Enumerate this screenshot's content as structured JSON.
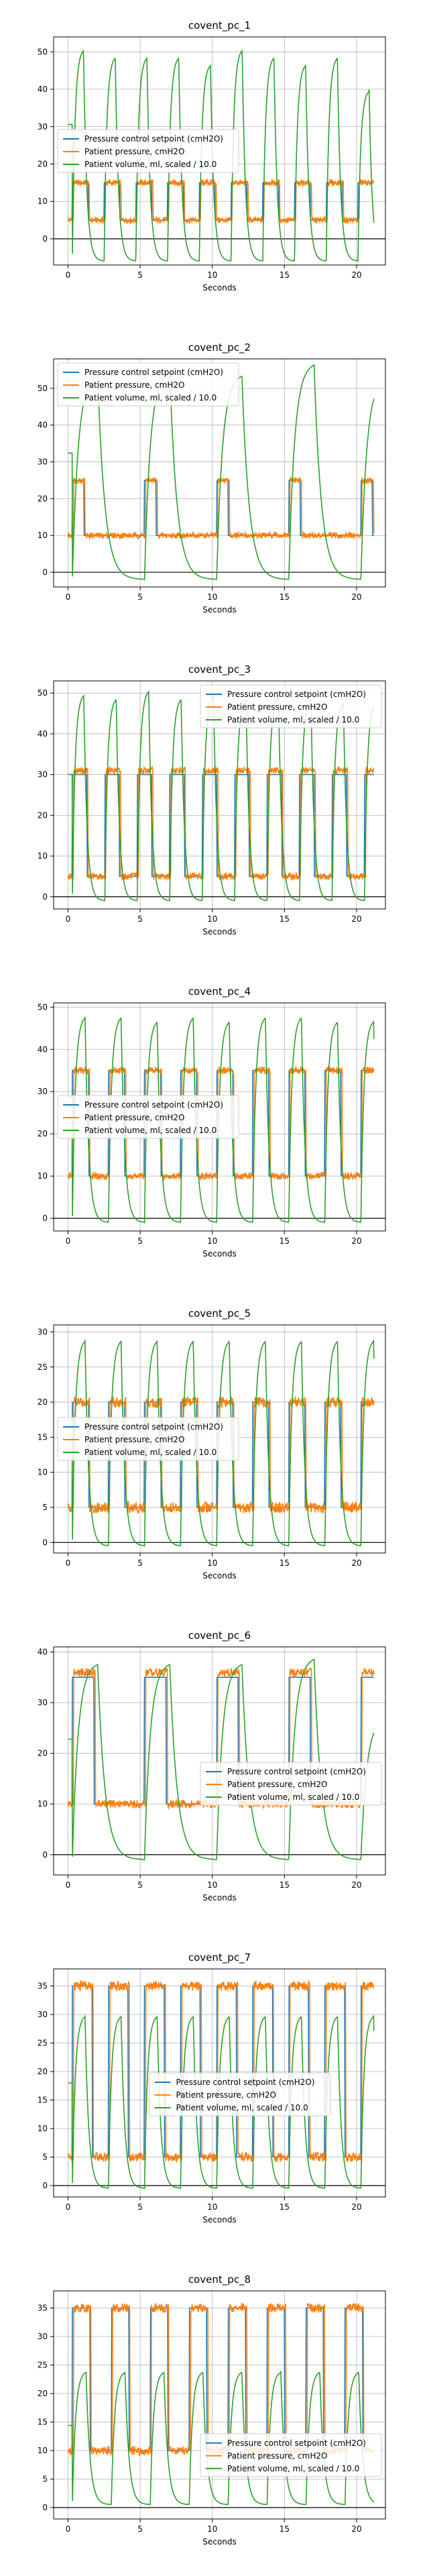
{
  "colors": {
    "setpoint": "#1f77b4",
    "pressure": "#ff7f0e",
    "volume": "#2ca02c",
    "grid": "#b0b0b0",
    "zero_line": "#000000"
  },
  "chart_data": [
    {
      "type": "line",
      "title": "covent_pc_1",
      "xlabel": "Seconds",
      "ylabel": "",
      "xlim": [
        -1,
        22
      ],
      "ylim": [
        -7,
        54
      ],
      "xticks": [
        0,
        5,
        10,
        15,
        20
      ],
      "yticks": [
        0,
        10,
        20,
        30,
        40,
        50
      ],
      "grid": true,
      "legend_position": "center-left",
      "series": [
        {
          "name": "Pressure control setpoint (cmH2O)",
          "color": "#1f77b4",
          "pattern": {
            "period": 2.2,
            "high": 15,
            "low": 5,
            "duty": 0.5,
            "cycles": 10
          },
          "x_range": [
            0,
            21.2
          ]
        },
        {
          "name": "Patient pressure, cmH2O",
          "color": "#ff7f0e",
          "pattern": {
            "period": 2.2,
            "high": 15,
            "low": 5,
            "duty": 0.5,
            "cycles": 10
          },
          "x_range": [
            0,
            21.2
          ]
        },
        {
          "name": "Patient volume, ml, scaled / 10.0",
          "color": "#2ca02c",
          "peaks": [
            51,
            49,
            49,
            49,
            47,
            51,
            49,
            47,
            49,
            40
          ],
          "trough": -6,
          "period": 2.2,
          "x_range": [
            0,
            21.2
          ]
        }
      ]
    },
    {
      "type": "line",
      "title": "covent_pc_2",
      "xlabel": "Seconds",
      "ylabel": "",
      "xlim": [
        -1,
        22
      ],
      "ylim": [
        -4,
        58
      ],
      "xticks": [
        0,
        5,
        10,
        15,
        20
      ],
      "yticks": [
        0,
        10,
        20,
        30,
        40,
        50
      ],
      "grid": true,
      "legend_position": "upper-left",
      "series": [
        {
          "name": "Pressure control setpoint (cmH2O)",
          "color": "#1f77b4",
          "pattern": {
            "period": 5,
            "high": 25,
            "low": 10,
            "duty": 0.16,
            "cycles": 5
          },
          "x_range": [
            0,
            21.2
          ]
        },
        {
          "name": "Patient pressure, cmH2O",
          "color": "#ff7f0e",
          "pattern": {
            "period": 5,
            "high": 25,
            "low": 10,
            "duty": 0.16,
            "cycles": 5
          },
          "x_range": [
            0,
            21.2
          ]
        },
        {
          "name": "Patient volume, ml, scaled / 10.0",
          "color": "#2ca02c",
          "peaks": [
            54,
            55,
            54,
            57,
            53
          ],
          "trough": -2,
          "period": 5,
          "x_range": [
            0,
            21.2
          ]
        }
      ]
    },
    {
      "type": "line",
      "title": "covent_pc_3",
      "xlabel": "Seconds",
      "ylabel": "",
      "xlim": [
        -1,
        22
      ],
      "ylim": [
        -3,
        53
      ],
      "xticks": [
        0,
        5,
        10,
        15,
        20
      ],
      "yticks": [
        0,
        10,
        20,
        30,
        40,
        50
      ],
      "grid": true,
      "legend_position": "upper-right",
      "series": [
        {
          "name": "Pressure control setpoint (cmH2O)",
          "color": "#1f77b4",
          "pattern": {
            "period": 2.25,
            "high": 30,
            "low": 5,
            "duty": 0.45,
            "cycles": 9
          },
          "x_range": [
            0,
            21.2
          ]
        },
        {
          "name": "Patient pressure, cmH2O",
          "color": "#ff7f0e",
          "pattern": {
            "period": 2.25,
            "high": 31,
            "low": 5,
            "duty": 0.45,
            "cycles": 9
          },
          "x_range": [
            0,
            21.2
          ]
        },
        {
          "name": "Patient volume, ml, scaled / 10.0",
          "color": "#2ca02c",
          "peaks": [
            50,
            49,
            51,
            49,
            50,
            49,
            50,
            49,
            48
          ],
          "trough": -1,
          "period": 2.25,
          "x_range": [
            0,
            21.2
          ]
        }
      ]
    },
    {
      "type": "line",
      "title": "covent_pc_4",
      "xlabel": "Seconds",
      "ylabel": "",
      "xlim": [
        -1,
        22
      ],
      "ylim": [
        -3,
        51
      ],
      "xticks": [
        0,
        5,
        10,
        15,
        20
      ],
      "yticks": [
        0,
        10,
        20,
        30,
        40,
        50
      ],
      "grid": true,
      "legend_position": "center-left",
      "series": [
        {
          "name": "Pressure control setpoint (cmH2O)",
          "color": "#1f77b4",
          "pattern": {
            "period": 2.5,
            "high": 35,
            "low": 10,
            "duty": 0.45,
            "cycles": 8
          },
          "x_range": [
            0,
            21.2
          ]
        },
        {
          "name": "Patient pressure, cmH2O",
          "color": "#ff7f0e",
          "pattern": {
            "period": 2.5,
            "high": 35,
            "low": 10,
            "duty": 0.45,
            "cycles": 8
          },
          "x_range": [
            0,
            21.2
          ]
        },
        {
          "name": "Patient volume, ml, scaled / 10.0",
          "color": "#2ca02c",
          "peaks": [
            48,
            48,
            47,
            48,
            47,
            48,
            48,
            47
          ],
          "trough": -1,
          "period": 2.5,
          "x_range": [
            0,
            21.2
          ]
        }
      ]
    },
    {
      "type": "line",
      "title": "covent_pc_5",
      "xlabel": "Seconds",
      "ylabel": "",
      "xlim": [
        -1,
        22
      ],
      "ylim": [
        -1.5,
        31
      ],
      "xticks": [
        0,
        5,
        10,
        15,
        20
      ],
      "yticks": [
        0,
        5,
        10,
        15,
        20,
        25,
        30
      ],
      "grid": true,
      "legend_position": "center-left",
      "series": [
        {
          "name": "Pressure control setpoint (cmH2O)",
          "color": "#1f77b4",
          "pattern": {
            "period": 2.5,
            "high": 20,
            "low": 5,
            "duty": 0.45,
            "cycles": 8
          },
          "x_range": [
            0,
            21.2
          ]
        },
        {
          "name": "Patient pressure, cmH2O",
          "color": "#ff7f0e",
          "pattern": {
            "period": 2.5,
            "high": 20,
            "low": 5,
            "duty": 0.45,
            "cycles": 8
          },
          "x_range": [
            0,
            21.2
          ]
        },
        {
          "name": "Patient volume, ml, scaled / 10.0",
          "color": "#2ca02c",
          "peaks": [
            29,
            29,
            29,
            29,
            29,
            29,
            29,
            29
          ],
          "trough": -0.5,
          "period": 2.5,
          "x_range": [
            0,
            21.2
          ]
        }
      ]
    },
    {
      "type": "line",
      "title": "covent_pc_6",
      "xlabel": "Seconds",
      "ylabel": "",
      "xlim": [
        -1,
        22
      ],
      "ylim": [
        -4,
        41
      ],
      "xticks": [
        0,
        5,
        10,
        15,
        20
      ],
      "yticks": [
        0,
        10,
        20,
        30,
        40
      ],
      "grid": true,
      "legend_position": "center-right",
      "series": [
        {
          "name": "Pressure control setpoint (cmH2O)",
          "color": "#1f77b4",
          "pattern": {
            "period": 5,
            "high": 35,
            "low": 10,
            "duty": 0.3,
            "cycles": 5
          },
          "x_range": [
            0,
            21.2
          ]
        },
        {
          "name": "Patient pressure, cmH2O",
          "color": "#ff7f0e",
          "pattern": {
            "period": 5,
            "high": 36,
            "low": 10,
            "duty": 0.3,
            "cycles": 5
          },
          "x_range": [
            0,
            21.2
          ]
        },
        {
          "name": "Patient volume, ml, scaled / 10.0",
          "color": "#2ca02c",
          "peaks": [
            38,
            38,
            38,
            39,
            27
          ],
          "trough": -1,
          "period": 5,
          "x_range": [
            0,
            21.2
          ]
        }
      ]
    },
    {
      "type": "line",
      "title": "covent_pc_7",
      "xlabel": "Seconds",
      "ylabel": "",
      "xlim": [
        -1,
        22
      ],
      "ylim": [
        -2,
        38
      ],
      "xticks": [
        0,
        5,
        10,
        15,
        20
      ],
      "yticks": [
        0,
        5,
        10,
        15,
        20,
        25,
        30,
        35
      ],
      "grid": true,
      "legend_position": "center",
      "series": [
        {
          "name": "Pressure control setpoint (cmH2O)",
          "color": "#1f77b4",
          "pattern": {
            "period": 2.5,
            "high": 35,
            "low": 5,
            "duty": 0.55,
            "cycles": 9
          },
          "x_range": [
            0,
            21.2
          ]
        },
        {
          "name": "Patient pressure, cmH2O",
          "color": "#ff7f0e",
          "pattern": {
            "period": 2.5,
            "high": 35,
            "low": 5,
            "duty": 0.55,
            "cycles": 9
          },
          "x_range": [
            0,
            21.2
          ]
        },
        {
          "name": "Patient volume, ml, scaled / 10.0",
          "color": "#2ca02c",
          "peaks": [
            30,
            30,
            30,
            30,
            30,
            30,
            30,
            30,
            30
          ],
          "trough": -0.5,
          "period": 2.5,
          "x_range": [
            0,
            21.2
          ]
        }
      ]
    },
    {
      "type": "line",
      "title": "covent_pc_8",
      "xlabel": "Seconds",
      "ylabel": "",
      "xlim": [
        -1,
        22
      ],
      "ylim": [
        -2,
        38
      ],
      "xticks": [
        0,
        5,
        10,
        15,
        20
      ],
      "yticks": [
        0,
        5,
        10,
        15,
        20,
        25,
        30,
        35
      ],
      "grid": true,
      "legend_position": "lower-right",
      "series": [
        {
          "name": "Pressure control setpoint (cmH2O)",
          "color": "#1f77b4",
          "pattern": {
            "period": 2.7,
            "high": 35,
            "low": 10,
            "duty": 0.45,
            "cycles": 8
          },
          "x_range": [
            0,
            21.2
          ]
        },
        {
          "name": "Patient pressure, cmH2O",
          "color": "#ff7f0e",
          "pattern": {
            "period": 2.7,
            "high": 35,
            "low": 10,
            "duty": 0.45,
            "cycles": 8
          },
          "x_range": [
            0,
            21.2
          ]
        },
        {
          "name": "Patient volume, ml, scaled / 10.0",
          "color": "#2ca02c",
          "peaks": [
            24,
            24,
            24,
            24,
            24,
            24,
            24,
            24
          ],
          "trough": 0.5,
          "period": 2.7,
          "x_range": [
            0,
            21.2
          ]
        }
      ]
    }
  ]
}
